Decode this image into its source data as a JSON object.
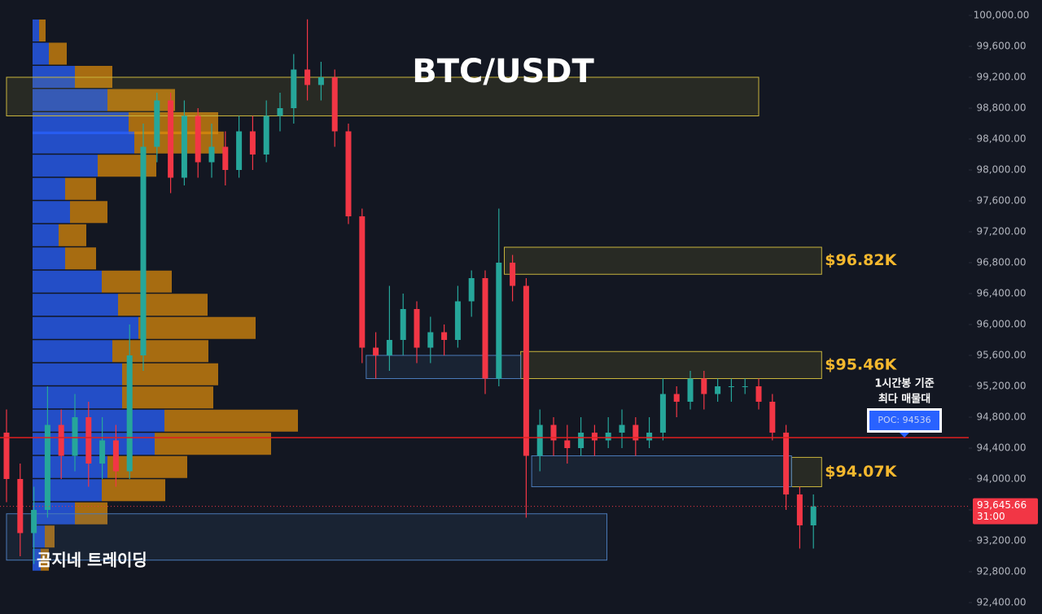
{
  "chart_data": {
    "type": "candlestick",
    "title": "BTC/USDT",
    "watermark": "곰지네 트레이딩",
    "up_color": "#26a69a",
    "down_color": "#f23645",
    "ylim": [
      92400,
      100000
    ],
    "yticks": [
      {
        "value": 92400,
        "label": "92,400.00"
      },
      {
        "value": 92800,
        "label": "92,800.00"
      },
      {
        "value": 93200,
        "label": "93,200.00"
      },
      {
        "value": 93600,
        "label": "93,600.00"
      },
      {
        "value": 94000,
        "label": "94,000.00"
      },
      {
        "value": 94400,
        "label": "94,400.00"
      },
      {
        "value": 94800,
        "label": "94,800.00"
      },
      {
        "value": 95200,
        "label": "95,200.00"
      },
      {
        "value": 95600,
        "label": "95,600.00"
      },
      {
        "value": 96000,
        "label": "96,000.00"
      },
      {
        "value": 96400,
        "label": "96,400.00"
      },
      {
        "value": 96800,
        "label": "96,800.00"
      },
      {
        "value": 97200,
        "label": "97,200.00"
      },
      {
        "value": 97600,
        "label": "97,600.00"
      },
      {
        "value": 98000,
        "label": "98,000.00"
      },
      {
        "value": 98400,
        "label": "98,400.00"
      },
      {
        "value": 98800,
        "label": "98,800.00"
      },
      {
        "value": 99200,
        "label": "99,200.00"
      },
      {
        "value": 99600,
        "label": "99,600.00"
      },
      {
        "value": 100000,
        "label": "100,000.00"
      }
    ],
    "open": [
      94600,
      94000,
      93300,
      93600,
      94700,
      94300,
      94800,
      94200,
      94500,
      94100,
      95600,
      98300,
      98900,
      97900,
      98700,
      98100,
      98300,
      98000,
      98500,
      98200,
      98700,
      98800,
      99300,
      99100,
      99200,
      98500,
      97400,
      95700,
      95600,
      95800,
      96200,
      95700,
      95900,
      95800,
      96300,
      96600,
      95300,
      96800,
      96500,
      94300,
      94700,
      94500,
      94400,
      94600,
      94500,
      94600,
      94700,
      94500,
      94600,
      95100,
      95000,
      95300,
      95100,
      95200,
      95200,
      95200,
      95000,
      94600,
      93800,
      93400
    ],
    "high": [
      94900,
      94200,
      93900,
      95200,
      94900,
      95100,
      95000,
      94800,
      94700,
      96000,
      98600,
      99000,
      99000,
      98900,
      98800,
      98600,
      98500,
      98700,
      98700,
      98900,
      99000,
      99500,
      99950,
      99400,
      99300,
      98600,
      97500,
      95900,
      96500,
      96400,
      96300,
      96100,
      96000,
      96500,
      96700,
      96700,
      97500,
      96900,
      96600,
      94900,
      94800,
      94700,
      94800,
      94700,
      94800,
      94900,
      94800,
      94800,
      95300,
      95200,
      95400,
      95400,
      95300,
      95300,
      95300,
      95300,
      95100,
      94700,
      93900,
      93800
    ],
    "low": [
      93700,
      93000,
      92900,
      93500,
      94000,
      94100,
      93900,
      94000,
      93900,
      94000,
      95400,
      98100,
      97700,
      97800,
      97900,
      97900,
      97800,
      97900,
      98000,
      98100,
      98500,
      98600,
      98900,
      98900,
      98300,
      97300,
      95500,
      95300,
      95400,
      95600,
      95500,
      95500,
      95600,
      95700,
      96100,
      95100,
      95200,
      96300,
      93500,
      94100,
      94300,
      94200,
      94300,
      94300,
      94400,
      94400,
      94300,
      94400,
      94500,
      94800,
      94900,
      94900,
      95000,
      95000,
      95100,
      94900,
      94500,
      93600,
      93100,
      93100
    ],
    "close": [
      94000,
      93300,
      93600,
      94700,
      94300,
      94800,
      94200,
      94500,
      94100,
      95600,
      98300,
      98900,
      97900,
      98700,
      98100,
      98300,
      98000,
      98500,
      98200,
      98700,
      98800,
      99300,
      99100,
      99200,
      98500,
      97400,
      95700,
      95600,
      95800,
      96200,
      95700,
      95900,
      95800,
      96300,
      96600,
      95300,
      96800,
      96500,
      94300,
      94700,
      94500,
      94400,
      94600,
      94500,
      94600,
      94700,
      94500,
      94600,
      95100,
      95000,
      95300,
      95100,
      95200,
      95200,
      95200,
      95000,
      94600,
      93800,
      93400,
      93645.66
    ],
    "volume_profile": {
      "prices": [
        99800,
        99500,
        99200,
        98900,
        98600,
        98350,
        98050,
        97750,
        97450,
        97150,
        96850,
        96550,
        96250,
        95950,
        95650,
        95350,
        95050,
        94750,
        94450,
        94150,
        93850,
        93550,
        93250,
        92950
      ],
      "buy": [
        8,
        20,
        52,
        92,
        118,
        125,
        80,
        40,
        46,
        32,
        40,
        85,
        105,
        130,
        98,
        110,
        110,
        162,
        150,
        92,
        85,
        52,
        15,
        10
      ],
      "sell": [
        8,
        22,
        46,
        83,
        110,
        110,
        72,
        38,
        46,
        34,
        38,
        86,
        110,
        144,
        118,
        118,
        112,
        164,
        143,
        98,
        78,
        40,
        12,
        10
      ],
      "buy_color": "#2962ff",
      "sell_color": "#d98a0c"
    },
    "zones": [
      {
        "from": 0,
        "to": 55,
        "top": 99200,
        "bottom": 98700,
        "color": "#c8b43c"
      },
      {
        "from": 36.4,
        "to": 59.6,
        "top": 97000,
        "bottom": 96650,
        "color": "#c8b43c",
        "label": "$96.82K"
      },
      {
        "from": 37.6,
        "to": 59.6,
        "top": 95650,
        "bottom": 95300,
        "color": "#c8b43c",
        "label": "$95.46K"
      },
      {
        "from": 57.4,
        "to": 59.6,
        "top": 94280,
        "bottom": 93900,
        "color": "#c8b43c",
        "label": "$94.07K"
      },
      {
        "from": 26.3,
        "to": 37.6,
        "top": 95600,
        "bottom": 95300,
        "color": "#4a7ab8"
      },
      {
        "from": 38.4,
        "to": 57.4,
        "top": 94300,
        "bottom": 93900,
        "color": "#4a7ab8"
      },
      {
        "from": 0,
        "to": 43.9,
        "top": 93550,
        "bottom": 92950,
        "color": "#4a7ab8"
      }
    ],
    "poc": {
      "value": 94536,
      "label": "POC: 94536",
      "note": [
        "1시간봉 기준",
        "최다 매물대"
      ],
      "color": "#e01f1f"
    },
    "last_price": {
      "value": 93645.66,
      "label": "93,645.66",
      "countdown": "31:00"
    }
  }
}
